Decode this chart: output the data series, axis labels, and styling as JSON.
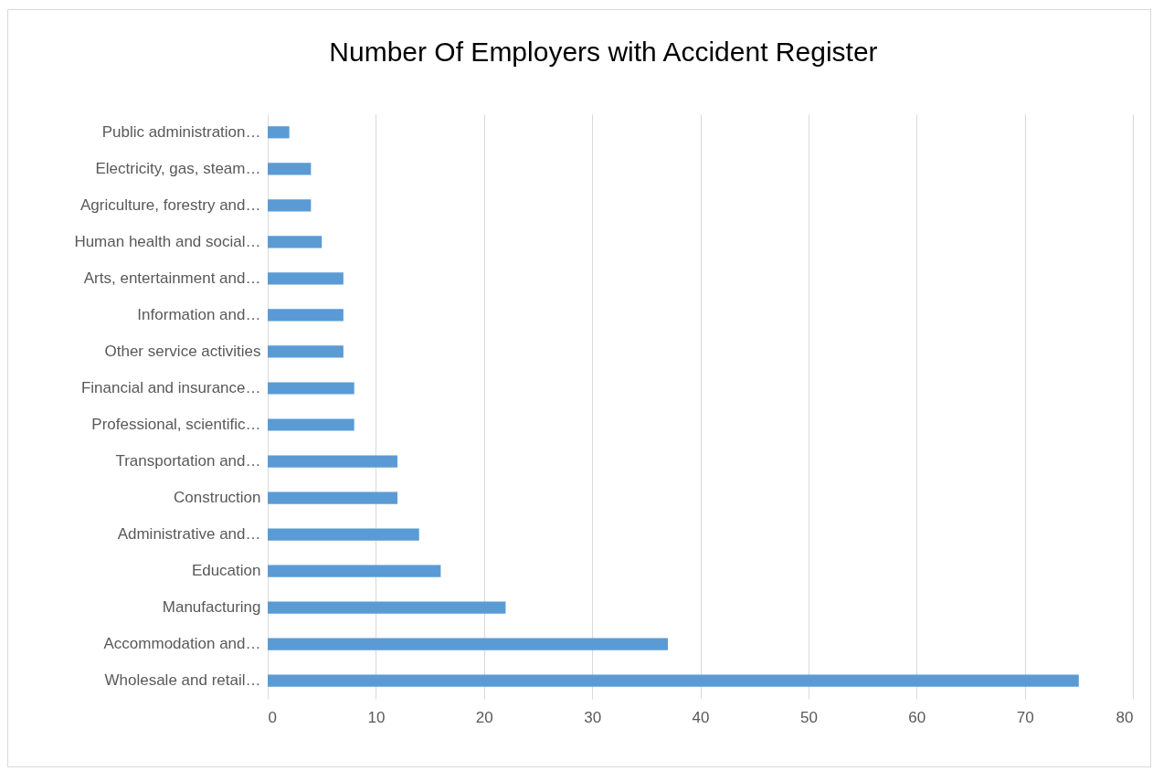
{
  "chart_data": {
    "type": "bar",
    "orientation": "horizontal",
    "title": "Number Of Employers  with Accident Register",
    "categories": [
      "Public administration…",
      "Electricity, gas, steam…",
      "Agriculture, forestry and…",
      "Human health and social…",
      "Arts, entertainment and…",
      "Information and…",
      "Other service activities",
      "Financial and insurance…",
      "Professional, scientific…",
      "Transportation and…",
      "Construction",
      "Administrative and…",
      "Education",
      "Manufacturing",
      "Accommodation and…",
      "Wholesale and retail…"
    ],
    "values": [
      2,
      4,
      4,
      5,
      7,
      7,
      7,
      8,
      8,
      12,
      12,
      14,
      16,
      22,
      37,
      75
    ],
    "color": "#5b9bd5",
    "xlim": [
      0,
      80
    ],
    "xticks": [
      0,
      10,
      20,
      30,
      40,
      50,
      60,
      70,
      80
    ],
    "grid": "x"
  }
}
